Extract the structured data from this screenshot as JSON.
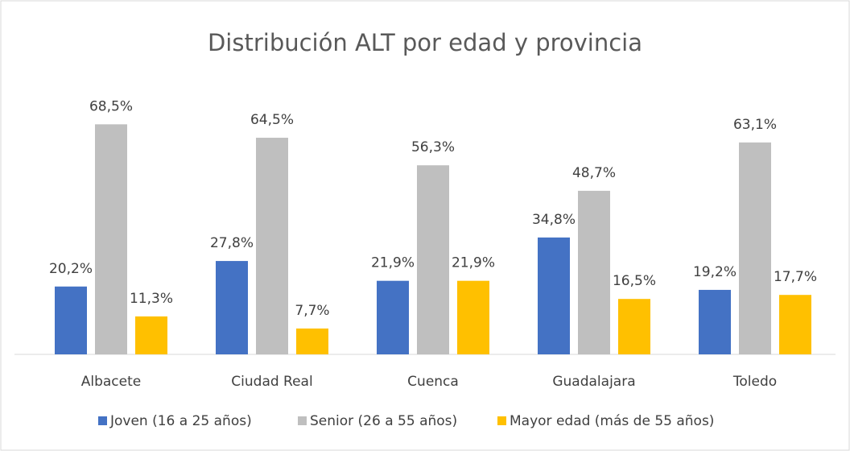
{
  "chart_data": {
    "type": "bar",
    "title": "Distribución ALT por edad y provincia",
    "categories": [
      "Albacete",
      "Ciudad Real",
      "Cuenca",
      "Guadalajara",
      "Toledo"
    ],
    "series": [
      {
        "name": "Joven (16 a 25 años)",
        "color": "#4472c4",
        "values": [
          20.2,
          27.8,
          21.9,
          34.8,
          19.2
        ],
        "value_labels": [
          "20,2%",
          "27,8%",
          "21,9%",
          "34,8%",
          "19,2%"
        ]
      },
      {
        "name": "Senior (26 a 55 años)",
        "color": "#bfbfbf",
        "values": [
          68.5,
          64.5,
          56.3,
          48.7,
          63.1
        ],
        "value_labels": [
          "68,5%",
          "64,5%",
          "56,3%",
          "48,7%",
          "63,1%"
        ]
      },
      {
        "name": "Mayor edad (más de 55 años)",
        "color": "#ffc000",
        "values": [
          11.3,
          7.7,
          21.9,
          16.5,
          17.7
        ],
        "value_labels": [
          "11,3%",
          "7,7%",
          "21,9%",
          "16,5%",
          "17,7%"
        ]
      }
    ],
    "legend": "bottom"
  }
}
